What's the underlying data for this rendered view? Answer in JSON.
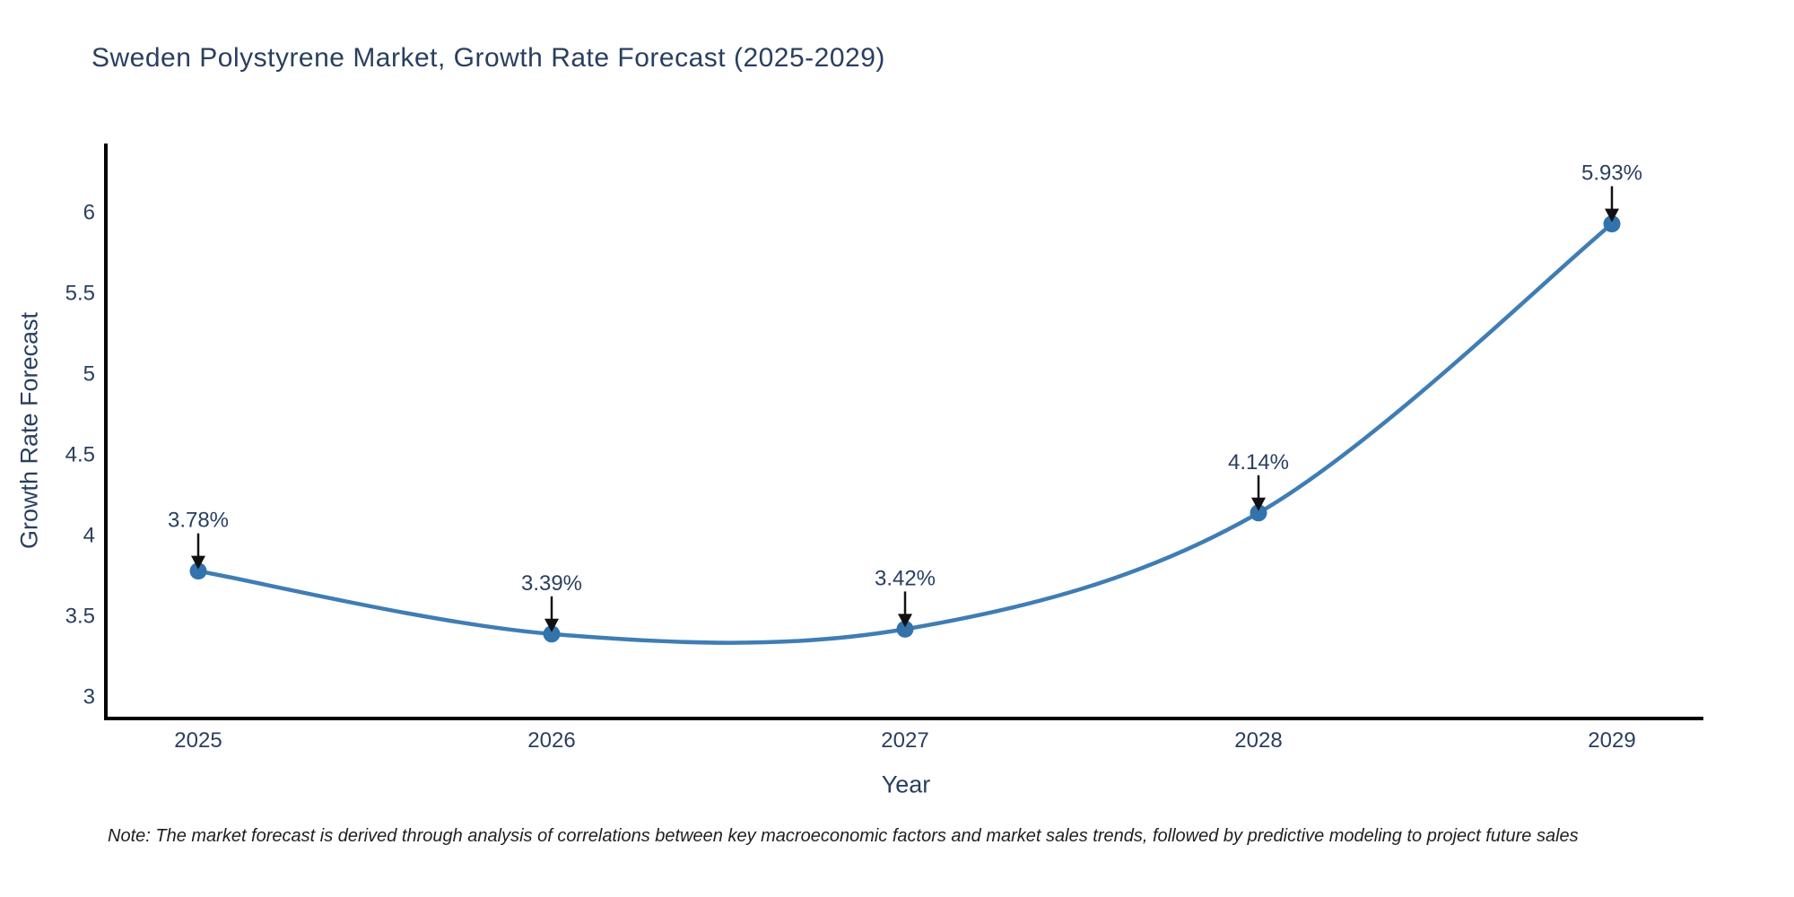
{
  "title": "Sweden Polystyrene Market, Growth Rate Forecast (2025-2029)",
  "note": "Note: The market forecast is derived through analysis of correlations between key macroeconomic factors and market sales trends, followed by predictive modeling to project future sales",
  "colors": {
    "line": "#3f7db4",
    "marker": "#3273ad",
    "axis": "#000000",
    "text": "#2a3f5f",
    "arrow": "#111111",
    "note_text": "#1f1f1f",
    "background": "#ffffff"
  },
  "chart_data": {
    "type": "line",
    "title": "Sweden Polystyrene Market, Growth Rate Forecast (2025-2029)",
    "xlabel": "Year",
    "ylabel": "Growth Rate Forecast",
    "x": [
      2025,
      2026,
      2027,
      2028,
      2029
    ],
    "series": [
      {
        "name": "Growth Rate Forecast",
        "values": [
          3.78,
          3.39,
          3.42,
          4.14,
          5.93
        ],
        "point_labels": [
          "3.78%",
          "3.39%",
          "3.42%",
          "4.14%",
          "5.93%"
        ]
      }
    ],
    "yticks": [
      "3",
      "3.5",
      "4",
      "4.5",
      "5",
      "5.5",
      "6"
    ],
    "ytick_values": [
      3,
      3.5,
      4,
      4.5,
      5,
      5.5,
      6
    ],
    "ylim": [
      2.87,
      6.56
    ],
    "grid": false,
    "legend_position": "none",
    "line_shape": "spline",
    "annotation_style": "arrow-down-to-point"
  }
}
